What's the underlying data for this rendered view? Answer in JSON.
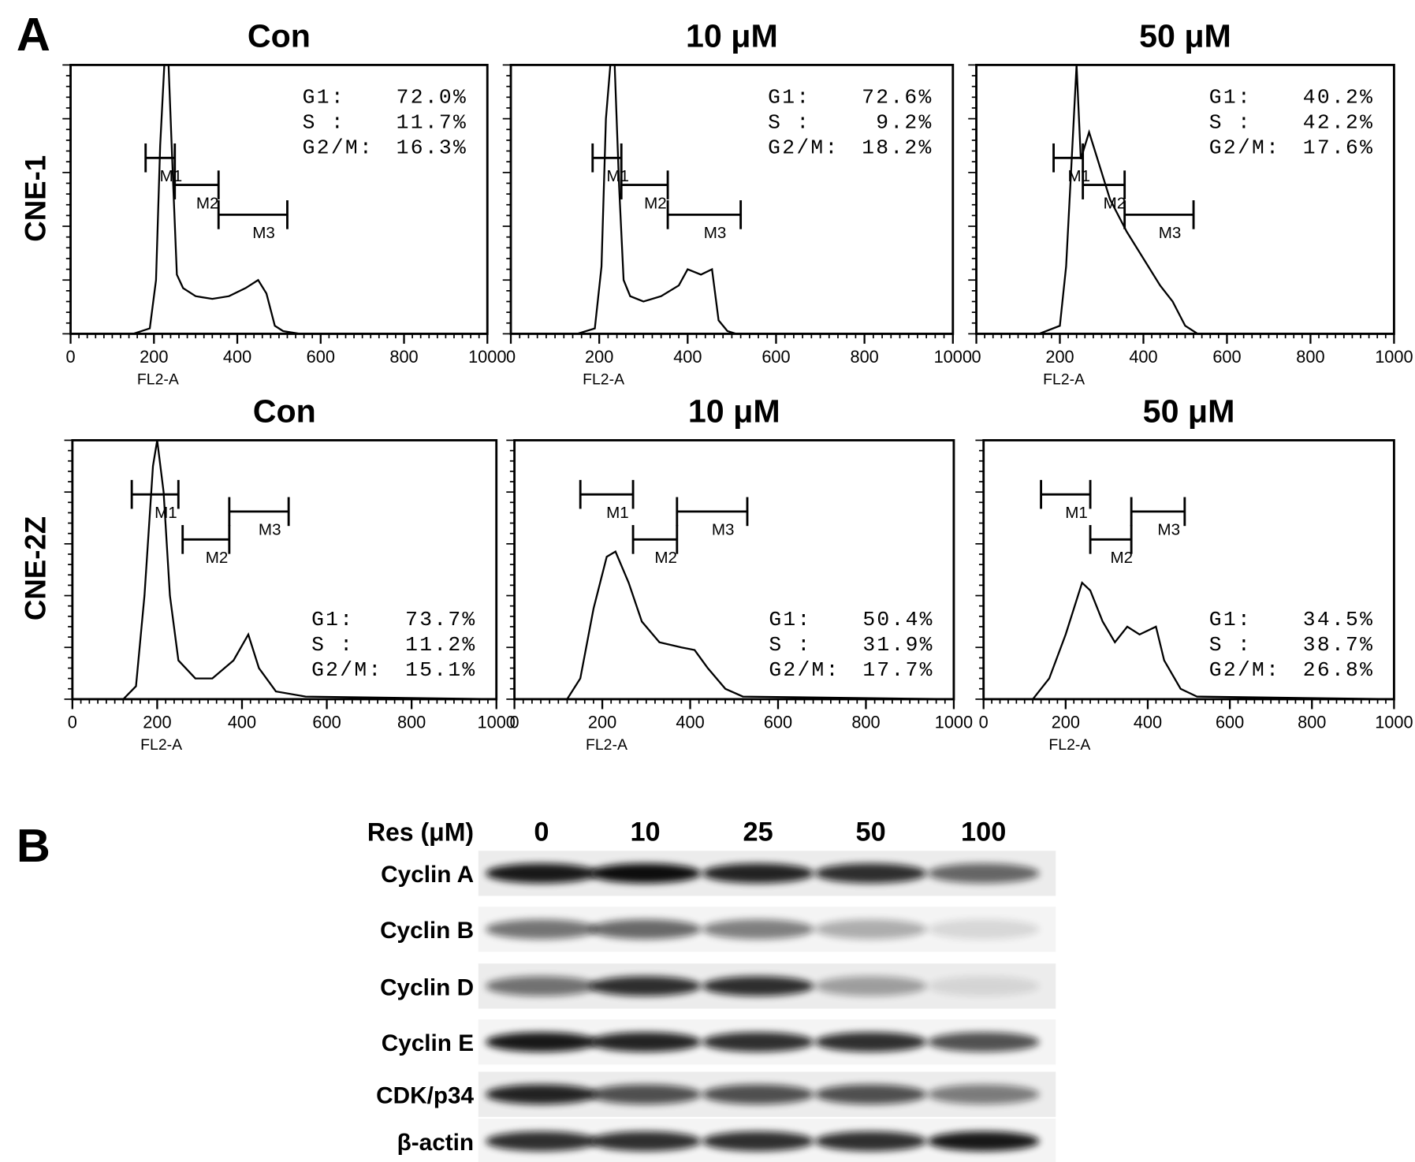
{
  "panel_labels": [
    "A",
    "B"
  ],
  "row_labels": [
    "CNE-1",
    "CNE-2Z"
  ],
  "chart_data": [
    {
      "type": "line",
      "title": "Con",
      "x_label": "FL2-A",
      "xlim": [
        0,
        1000
      ],
      "xticks": [
        0,
        200,
        400,
        600,
        800,
        1000
      ],
      "ylim": [
        0,
        100
      ],
      "stats_position": "top-right",
      "color": "#000000",
      "x": [
        150,
        190,
        205,
        215,
        225,
        235,
        245,
        255,
        270,
        300,
        340,
        380,
        420,
        450,
        470,
        490,
        510,
        550,
        1000
      ],
      "values": [
        0,
        2,
        20,
        70,
        100,
        100,
        60,
        22,
        17,
        14,
        13,
        14,
        17,
        20,
        15,
        3,
        1,
        0,
        0
      ],
      "gates": [
        {
          "label": "M1",
          "range": [
            180,
            250
          ]
        },
        {
          "label": "M2",
          "range": [
            250,
            355
          ]
        },
        {
          "label": "M3",
          "range": [
            355,
            520
          ]
        }
      ],
      "stats": [
        {
          "label": "G1:",
          "value": "72.0%"
        },
        {
          "label": "S  :",
          "value": "11.7%"
        },
        {
          "label": "G2/M:",
          "value": "16.3%"
        }
      ]
    },
    {
      "type": "line",
      "title": "10 μM",
      "x_label": "FL2-A",
      "xlim": [
        0,
        1000
      ],
      "xticks": [
        0,
        200,
        400,
        600,
        800,
        1000
      ],
      "ylim": [
        0,
        100
      ],
      "stats_position": "top-right",
      "color": "#000000",
      "x": [
        150,
        190,
        205,
        215,
        225,
        235,
        245,
        255,
        270,
        300,
        340,
        380,
        400,
        430,
        455,
        470,
        490,
        510,
        1000
      ],
      "values": [
        0,
        2,
        25,
        80,
        100,
        100,
        55,
        20,
        14,
        12,
        14,
        18,
        24,
        22,
        24,
        5,
        1,
        0,
        0
      ],
      "gates": [
        {
          "label": "M1",
          "range": [
            185,
            250
          ]
        },
        {
          "label": "M2",
          "range": [
            250,
            355
          ]
        },
        {
          "label": "M3",
          "range": [
            355,
            520
          ]
        }
      ],
      "stats": [
        {
          "label": "G1:",
          "value": "72.6%"
        },
        {
          "label": "S  :",
          "value": "9.2%"
        },
        {
          "label": "G2/M:",
          "value": "18.2%"
        }
      ]
    },
    {
      "type": "line",
      "title": "50 μM",
      "x_label": "FL2-A",
      "xlim": [
        0,
        1000
      ],
      "xticks": [
        0,
        200,
        400,
        600,
        800,
        1000
      ],
      "ylim": [
        0,
        100
      ],
      "stats_position": "top-right",
      "color": "#000000",
      "x": [
        150,
        200,
        215,
        230,
        240,
        250,
        270,
        290,
        320,
        360,
        400,
        440,
        470,
        500,
        530,
        1000
      ],
      "values": [
        0,
        3,
        25,
        70,
        100,
        65,
        75,
        65,
        50,
        38,
        28,
        18,
        12,
        3,
        0,
        0
      ],
      "gates": [
        {
          "label": "M1",
          "range": [
            185,
            255
          ]
        },
        {
          "label": "M2",
          "range": [
            255,
            355
          ]
        },
        {
          "label": "M3",
          "range": [
            355,
            520
          ]
        }
      ],
      "stats": [
        {
          "label": "G1:",
          "value": "40.2%"
        },
        {
          "label": "S  :",
          "value": "42.2%"
        },
        {
          "label": "G2/M:",
          "value": "17.6%"
        }
      ]
    },
    {
      "type": "line",
      "title": "Con",
      "x_label": "FL2-A",
      "xlim": [
        0,
        1000
      ],
      "xticks": [
        0,
        200,
        400,
        600,
        800,
        1000
      ],
      "ylim": [
        0,
        100
      ],
      "stats_position": "bottom-right",
      "color": "#000000",
      "x": [
        120,
        150,
        170,
        190,
        200,
        215,
        230,
        250,
        290,
        330,
        380,
        415,
        440,
        480,
        550,
        1000
      ],
      "values": [
        0,
        5,
        40,
        90,
        100,
        80,
        40,
        15,
        8,
        8,
        15,
        25,
        12,
        3,
        1,
        0
      ],
      "gates": [
        {
          "label": "M1",
          "range": [
            140,
            250
          ]
        },
        {
          "label": "M2",
          "range": [
            260,
            370
          ]
        },
        {
          "label": "M3",
          "range": [
            370,
            510
          ]
        }
      ],
      "stats": [
        {
          "label": "G1:",
          "value": "73.7%"
        },
        {
          "label": "S  :",
          "value": "11.2%"
        },
        {
          "label": "G2/M:",
          "value": "15.1%"
        }
      ]
    },
    {
      "type": "line",
      "title": "10 μM",
      "x_label": "FL2-A",
      "xlim": [
        0,
        1000
      ],
      "xticks": [
        0,
        200,
        400,
        600,
        800,
        1000
      ],
      "ylim": [
        0,
        100
      ],
      "stats_position": "bottom-right",
      "color": "#000000",
      "x": [
        120,
        150,
        180,
        210,
        230,
        260,
        290,
        330,
        380,
        410,
        440,
        480,
        520,
        1000
      ],
      "values": [
        0,
        8,
        35,
        55,
        57,
        45,
        30,
        22,
        20,
        19,
        12,
        4,
        1,
        0
      ],
      "gates": [
        {
          "label": "M1",
          "range": [
            150,
            270
          ]
        },
        {
          "label": "M2",
          "range": [
            270,
            370
          ]
        },
        {
          "label": "M3",
          "range": [
            370,
            530
          ]
        }
      ],
      "stats": [
        {
          "label": "G1:",
          "value": "50.4%"
        },
        {
          "label": "S  :",
          "value": "31.9%"
        },
        {
          "label": "G2/M:",
          "value": "17.7%"
        }
      ]
    },
    {
      "type": "line",
      "title": "50 μM",
      "x_label": "FL2-A",
      "xlim": [
        0,
        1000
      ],
      "xticks": [
        0,
        200,
        400,
        600,
        800,
        1000
      ],
      "ylim": [
        0,
        100
      ],
      "stats_position": "bottom-right",
      "color": "#000000",
      "x": [
        120,
        160,
        200,
        240,
        260,
        290,
        320,
        350,
        380,
        420,
        440,
        480,
        520,
        1000
      ],
      "values": [
        0,
        8,
        25,
        45,
        42,
        30,
        22,
        28,
        25,
        28,
        15,
        4,
        1,
        0
      ],
      "gates": [
        {
          "label": "M1",
          "range": [
            140,
            260
          ]
        },
        {
          "label": "M2",
          "range": [
            260,
            360
          ]
        },
        {
          "label": "M3",
          "range": [
            360,
            490
          ]
        }
      ],
      "stats": [
        {
          "label": "G1:",
          "value": "34.5%"
        },
        {
          "label": "S  :",
          "value": "38.7%"
        },
        {
          "label": "G2/M:",
          "value": "26.8%"
        }
      ]
    }
  ],
  "blot": {
    "treatment_label": "Res (μM)",
    "lanes": [
      "0",
      "10",
      "25",
      "50",
      "100"
    ],
    "proteins": [
      "Cyclin A",
      "Cyclin B",
      "Cyclin D",
      "Cyclin E",
      "CDK/p34",
      "β-actin"
    ]
  }
}
